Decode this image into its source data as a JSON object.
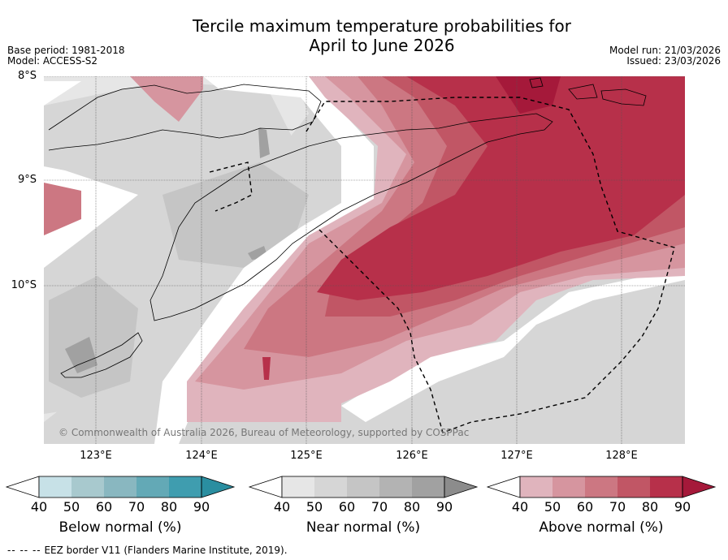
{
  "title_line1": "Tercile maximum temperature probabilities for",
  "title_line2": "April to June 2026",
  "meta": {
    "base_period": "Base period: 1981-2018",
    "model": "Model: ACCESS-S2",
    "model_run": "Model run: 21/03/2026",
    "issued": "Issued: 23/03/2026"
  },
  "map": {
    "lat_labels": [
      "8°S",
      "9°S",
      "10°S"
    ],
    "lon_labels": [
      "123°E",
      "124°E",
      "125°E",
      "126°E",
      "127°E",
      "128°E"
    ],
    "copyright": "© Commonwealth of Australia 2026, Bureau of Meteorology, supported by COSPPac"
  },
  "colorbars": [
    {
      "title": "Below normal (%)",
      "ticks": [
        "40",
        "50",
        "60",
        "70",
        "80",
        "90"
      ],
      "colors": [
        "#c7e1e7",
        "#a8c9ce",
        "#89b7c0",
        "#63a9b6",
        "#3f9daf",
        "#2a8ea0"
      ]
    },
    {
      "title": "Near normal (%)",
      "ticks": [
        "40",
        "50",
        "60",
        "70",
        "80",
        "90"
      ],
      "colors": [
        "#e6e6e6",
        "#d6d6d6",
        "#c5c5c5",
        "#b3b3b3",
        "#a1a1a1",
        "#8c8c8c"
      ]
    },
    {
      "title": "Above normal (%)",
      "ticks": [
        "40",
        "50",
        "60",
        "70",
        "80",
        "90"
      ],
      "colors": [
        "#e0b4bd",
        "#d6959f",
        "#cc7782",
        "#c15665",
        "#b7304a",
        "#a5193a"
      ]
    }
  ],
  "footer": {
    "legend_symbol": "-- -- --",
    "legend_text": "EEZ border V11 (Flanders Marine Institute, 2019)."
  }
}
